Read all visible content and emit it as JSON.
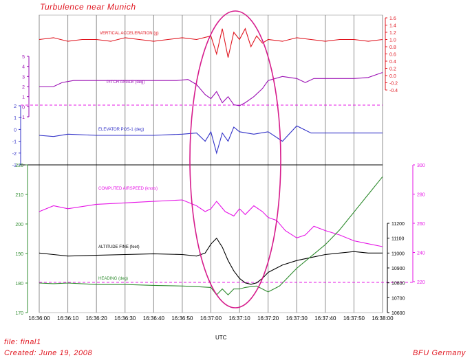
{
  "chart_data": {
    "type": "line",
    "title": "Turbulence  near  Munich",
    "xlabel": "UTC",
    "x_ticks": [
      "16:36:00",
      "16:36:10",
      "16:36:20",
      "16:36:30",
      "16:36:40",
      "16:36:50",
      "16:37:00",
      "16:37:10",
      "16:37:20",
      "16:37:30",
      "16:37:40",
      "16:37:50",
      "16:38:00"
    ],
    "grid": true,
    "series": [
      {
        "name": "VERTICAL  ACCELERATION  (g)",
        "color": "#e0141e",
        "ylim": [
          -0.4,
          1.6
        ],
        "y_ticks": [
          "1.6",
          "1.4",
          "1.2",
          "1.0",
          "0.8",
          "0.6",
          "0.4",
          "0.2",
          "0.0",
          "-0.2",
          "-0.4"
        ],
        "x": [
          0,
          5,
          10,
          15,
          20,
          25,
          30,
          35,
          40,
          45,
          50,
          55,
          60,
          62,
          64,
          66,
          68,
          70,
          72,
          74,
          76,
          78,
          80,
          85,
          90,
          95,
          100,
          105,
          110,
          115,
          120
        ],
        "y": [
          1.0,
          1.05,
          0.95,
          1.0,
          1.0,
          0.95,
          1.05,
          1.0,
          0.95,
          1.0,
          1.05,
          1.0,
          1.1,
          0.6,
          1.3,
          0.5,
          1.2,
          1.0,
          1.3,
          0.8,
          1.1,
          0.9,
          1.0,
          0.95,
          1.05,
          1.0,
          0.95,
          1.0,
          1.0,
          0.95,
          1.0
        ]
      },
      {
        "name": "PITCH  ANGLE  (deg)",
        "color": "#9b0fb4",
        "ylim": [
          -1,
          5
        ],
        "y_ticks": [
          "5",
          "4",
          "3",
          "2",
          "1",
          "0",
          "-1"
        ],
        "x": [
          0,
          5,
          8,
          12,
          20,
          30,
          40,
          48,
          52,
          55,
          58,
          60,
          62,
          64,
          66,
          68,
          70,
          72,
          75,
          78,
          80,
          85,
          90,
          93,
          96,
          100,
          105,
          110,
          115,
          118,
          120
        ],
        "y": [
          2.0,
          2.0,
          2.4,
          2.6,
          2.6,
          2.6,
          2.6,
          2.6,
          2.7,
          2.2,
          1.2,
          0.8,
          1.5,
          0.4,
          1.0,
          0.2,
          0.1,
          0.4,
          1.0,
          1.8,
          2.6,
          3.0,
          2.8,
          2.4,
          2.8,
          2.8,
          2.8,
          2.8,
          2.9,
          3.2,
          3.4
        ]
      },
      {
        "name": "ELEVATOR  POS-1  (deg)",
        "color": "#3232c8",
        "ylim": [
          -3,
          2
        ],
        "y_ticks": [
          "2",
          "1",
          "0",
          "-1",
          "-2",
          "-3"
        ],
        "x": [
          0,
          5,
          10,
          20,
          30,
          40,
          50,
          55,
          58,
          60,
          62,
          64,
          66,
          68,
          70,
          75,
          80,
          85,
          90,
          95,
          100,
          110,
          120
        ],
        "y": [
          -0.5,
          -0.6,
          -0.4,
          -0.5,
          -0.5,
          -0.5,
          -0.4,
          -0.3,
          -1.0,
          -0.2,
          -2.0,
          -0.3,
          -1.0,
          0.2,
          -0.2,
          -0.4,
          -0.2,
          -1.0,
          0.3,
          -0.3,
          -0.3,
          -0.3,
          -0.3
        ]
      },
      {
        "name": "COMPUTED  AIRSPEED  (knots)",
        "color": "#e614e6",
        "ylim": [
          220,
          300
        ],
        "y_ticks": [
          "300",
          "280",
          "260",
          "240",
          "220"
        ],
        "x": [
          0,
          5,
          10,
          20,
          30,
          40,
          50,
          55,
          58,
          60,
          62,
          65,
          68,
          70,
          72,
          75,
          78,
          80,
          83,
          86,
          90,
          93,
          96,
          100,
          105,
          110,
          115,
          120
        ],
        "y": [
          268,
          272,
          270,
          273,
          274,
          275,
          276,
          272,
          268,
          270,
          275,
          268,
          265,
          270,
          266,
          272,
          268,
          264,
          262,
          255,
          250,
          252,
          258,
          255,
          252,
          248,
          246,
          244
        ]
      },
      {
        "name": "ALTITUDE  FINE  (feet)",
        "color": "#000000",
        "ylim": [
          10600,
          11200
        ],
        "y_ticks": [
          "11200",
          "11100",
          "11000",
          "10900",
          "10800",
          "10700",
          "10600"
        ],
        "x": [
          0,
          5,
          10,
          20,
          30,
          40,
          50,
          55,
          58,
          60,
          62,
          64,
          66,
          68,
          70,
          72,
          74,
          76,
          78,
          80,
          85,
          90,
          95,
          100,
          105,
          110,
          115,
          120
        ],
        "y": [
          11000,
          10990,
          10980,
          10985,
          10990,
          10995,
          10990,
          10980,
          11000,
          11060,
          11100,
          11040,
          10950,
          10880,
          10830,
          10800,
          10790,
          10800,
          10830,
          10870,
          10920,
          10950,
          10970,
          10990,
          11000,
          11010,
          11000,
          11000
        ]
      },
      {
        "name": "HEADING  (deg)",
        "color": "#2e8b2e",
        "ylim": [
          170,
          220
        ],
        "y_ticks": [
          "220",
          "210",
          "200",
          "190",
          "180",
          "170"
        ],
        "x": [
          0,
          5,
          10,
          20,
          30,
          40,
          50,
          55,
          60,
          62,
          64,
          66,
          68,
          70,
          72,
          74,
          76,
          78,
          80,
          82,
          84,
          86,
          88,
          90,
          95,
          100,
          105,
          110,
          115,
          120
        ],
        "y": [
          180,
          179.8,
          180,
          179.5,
          179.5,
          179.2,
          179,
          178.8,
          178.5,
          176,
          178,
          176,
          178,
          178,
          178.5,
          178.8,
          179,
          178,
          177,
          178,
          179,
          181,
          183,
          185,
          189,
          193,
          198,
          204,
          210,
          216
        ]
      }
    ]
  },
  "annotations": {
    "ellipse_note": ""
  },
  "footer": {
    "file": "file:  final1",
    "created": "Created:  June  19,  2008",
    "org": "BFU  Germany"
  }
}
